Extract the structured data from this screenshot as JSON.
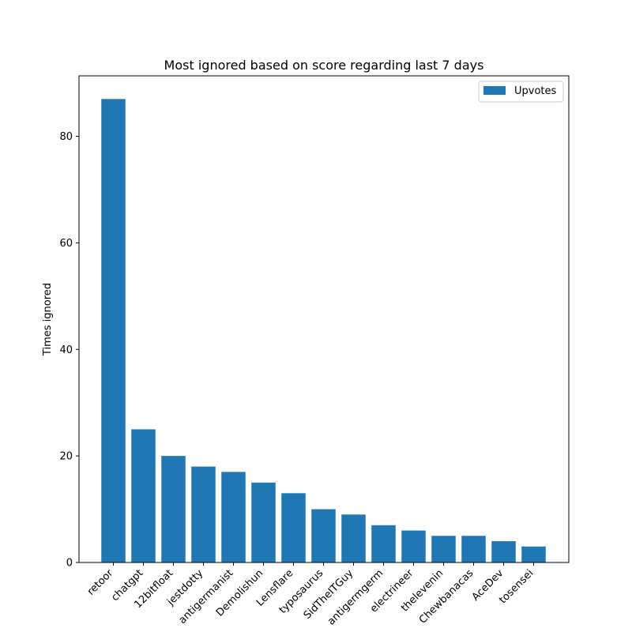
{
  "chart_data": {
    "type": "bar",
    "title": "Most ignored based on score regarding last 7 days",
    "xlabel": "",
    "ylabel": "Times ignored",
    "categories": [
      "retoor",
      "chatgpt",
      "12bitfloat",
      "jestdotty",
      "antigermanist",
      "Demolishun",
      "Lensflare",
      "typosaurus",
      "SidTheITGuy",
      "antigermgerm",
      "electrineer",
      "thelevenin",
      "Chewbanacas",
      "AceDev",
      "tosensei"
    ],
    "series": [
      {
        "name": "Upvotes",
        "values": [
          87,
          25,
          20,
          18,
          17,
          15,
          13,
          10,
          9,
          7,
          6,
          5,
          5,
          4,
          3
        ],
        "color": "#1f77b4"
      }
    ],
    "ylim": [
      0,
      91.35
    ],
    "yticks": [
      0,
      20,
      40,
      60,
      80
    ],
    "grid": false,
    "legend_position": "top-right"
  }
}
